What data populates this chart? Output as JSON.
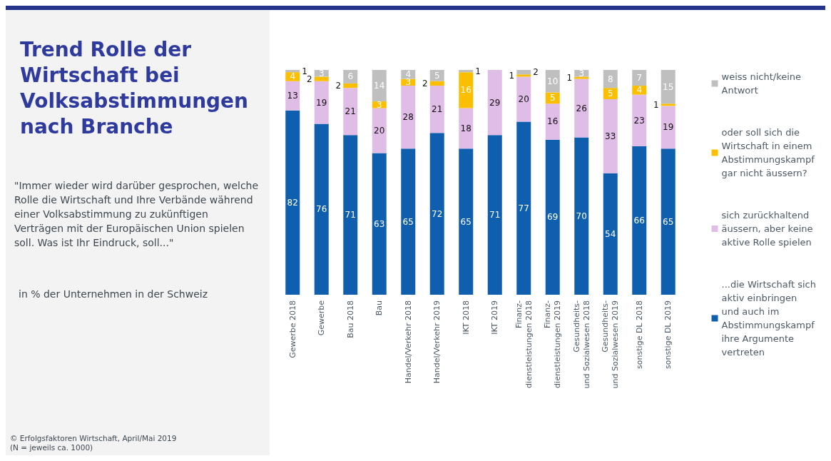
{
  "chart_data": {
    "type": "bar",
    "stacked": true,
    "title": "Trend Rolle der Wirtschaft bei Volksabstimmungen nach Branche",
    "subtitle": "\"Immer wieder wird darüber gesprochen, welche Rolle die Wirtschaft und Ihre Verbände während einer Volksabstimmung zu zukünftigen Verträgen mit der Europäischen Union spielen soll. Was ist Ihr Eindruck, soll...\"",
    "annotations": [
      "in % der Unternehmen in der Schweiz",
      "© Erfolgsfaktoren Wirtschaft, April/Mai 2019",
      "(N = jeweils ca. 1000)"
    ],
    "categories": [
      "Gewerbe 2018",
      "Gewerbe",
      "Bau 2018",
      "Bau",
      "Handel/Verkehr 2018",
      "Handel/Verkehr 2019",
      "IKT 2018",
      "IKT 2019",
      "Finanz-\ndienstleistungen 2018",
      "Finanz-\ndienstleistungen 2019",
      "Gesundheits-\nund Sozialwesen 2018",
      "Gesundheits-\nund Sozialwesen 2019",
      "sonstige DL 2018",
      "sonstige DL 2019"
    ],
    "series": [
      {
        "name": "...die Wirtschaft sich\naktiv einbringen\nund auch im\nAbstimmungskampf\nihre Argumente\nvertreten",
        "color": "#0f5fae",
        "values": [
          82,
          76,
          71,
          63,
          65,
          72,
          65,
          71,
          77,
          69,
          70,
          54,
          66,
          65
        ]
      },
      {
        "name": "sich zurückhaltend\näussern, aber keine\naktive Rolle spielen",
        "color": "#e0bde6",
        "values": [
          13,
          19,
          21,
          20,
          28,
          21,
          18,
          29,
          20,
          16,
          26,
          33,
          23,
          19
        ]
      },
      {
        "name": "oder soll sich die\nWirtschaft in einem\nAbstimmungskampf\ngar nicht äussern?",
        "color": "#fbbf00",
        "values": [
          4,
          2,
          2,
          3,
          3,
          2,
          16,
          null,
          1,
          5,
          1,
          5,
          4,
          1
        ]
      },
      {
        "name": "weiss nicht/keine\nAntwort",
        "color": "#bfbfbf",
        "values": [
          1,
          3,
          6,
          14,
          4,
          5,
          1,
          null,
          2,
          10,
          3,
          8,
          7,
          15
        ]
      }
    ],
    "data_labels": true,
    "legend": "right"
  }
}
